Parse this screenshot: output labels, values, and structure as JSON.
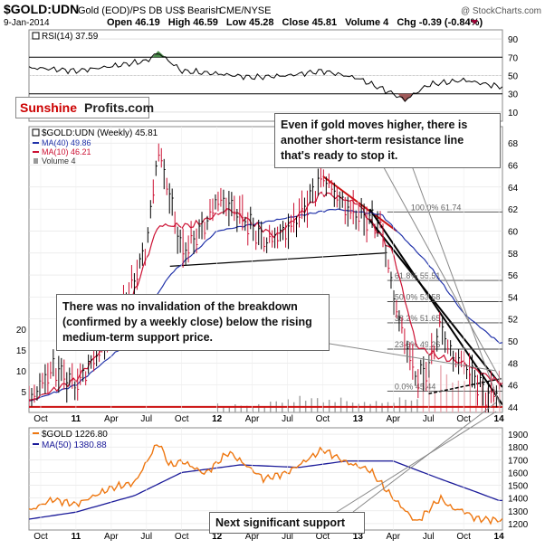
{
  "header": {
    "symbol": "$GOLD:UDN",
    "description": "Gold (EOD)/PS DB US$ Bearish",
    "exchange": "CME/NYSE",
    "watermark": "@ StockCharts.com",
    "date": "9-Jan-2014",
    "open_label": "Open",
    "open": "46.19",
    "high_label": "High",
    "high": "46.59",
    "low_label": "Low",
    "low": "45.28",
    "close_label": "Close",
    "close": "45.81",
    "volume_label": "Volume",
    "volume": "4",
    "chg_label": "Chg",
    "chg": "-0.39 (-0.84%)"
  },
  "logo": {
    "part1": "Sunshine",
    "part2": "Profits.com"
  },
  "rsi_panel": {
    "legend": "RSI(14) 37.59",
    "ticks": [
      "90",
      "70",
      "50",
      "30",
      "10"
    ]
  },
  "price_panel": {
    "legend_main": "$GOLD:UDN (Weekly) 45.81",
    "legend_ma40": "MA(40) 49.86",
    "legend_ma10": "MA(10) 46.21",
    "legend_volume": "Volume 4",
    "right_ticks": [
      "68",
      "66",
      "64",
      "62",
      "60",
      "58",
      "56",
      "54",
      "52",
      "50",
      "48",
      "46",
      "44"
    ],
    "volume_ticks": [
      "20",
      "15",
      "10",
      "5"
    ],
    "fib_levels": [
      "100.0% 61.74",
      "61.8% 55.51",
      "50.0% 53.58",
      "38.2% 51.65",
      "23.6% 49.26",
      "0.0% 45.44"
    ]
  },
  "gold_panel": {
    "legend_main": "$GOLD 1226.80",
    "legend_ma50": "MA(50) 1380.88",
    "ticks": [
      "1900",
      "1800",
      "1700",
      "1600",
      "1500",
      "1400",
      "1300",
      "1200"
    ]
  },
  "x_axis_labels": [
    "Oct",
    "11",
    "Apr",
    "Jul",
    "Oct",
    "12",
    "Apr",
    "Jul",
    "Oct",
    "13",
    "Apr",
    "Jul",
    "Oct",
    "14"
  ],
  "annotations": {
    "top_right": "Even if gold moves higher, there is another short-term resistance line that's ready to stop it.",
    "middle_left": "There was no invalidation of the breakdown (confirmed by a weekly close) below the rising medium-term support price.",
    "bottom": "Next significant support"
  },
  "colors": {
    "price_line": "#000000",
    "ma40": "#2233aa",
    "ma10": "#cc1133",
    "volume_up": "#e8a8b0",
    "rsi_line": "#000000",
    "rsi_overbought_fill": "#4a8a4a",
    "rsi_oversold_fill": "#a05a5a",
    "gold_line": "#ee7711",
    "gold_ma50": "#1a1a99",
    "trend_red": "#cc1111",
    "logo_red": "#cc0000"
  },
  "chart_data": [
    {
      "type": "line",
      "title": "RSI(14)",
      "x_range": [
        "2010-09",
        "2014-01"
      ],
      "ylim": [
        0,
        100
      ],
      "guide_levels": [
        70,
        50,
        30
      ],
      "last_value": 37.59,
      "series": [
        {
          "name": "RSI(14)",
          "x": [
            "2010-10",
            "2011-01",
            "2011-04",
            "2011-07",
            "2011-08",
            "2011-10",
            "2012-01",
            "2012-04",
            "2012-07",
            "2012-10",
            "2013-01",
            "2013-04",
            "2013-05",
            "2013-07",
            "2013-10",
            "2014-01"
          ],
          "values": [
            58,
            55,
            60,
            66,
            75,
            55,
            52,
            48,
            50,
            55,
            47,
            30,
            23,
            40,
            45,
            38
          ]
        }
      ]
    },
    {
      "type": "line",
      "title": "$GOLD:UDN (Weekly)",
      "x_range": [
        "2010-09",
        "2014-01"
      ],
      "ylim": [
        43.5,
        69.5
      ],
      "last_value": 45.81,
      "series": [
        {
          "name": "$GOLD:UDN",
          "x": [
            "2010-09",
            "2010-11",
            "2011-01",
            "2011-03",
            "2011-05",
            "2011-07",
            "2011-08",
            "2011-09",
            "2011-10",
            "2011-12",
            "2012-01",
            "2012-03",
            "2012-05",
            "2012-07",
            "2012-09",
            "2012-10",
            "2012-12",
            "2013-02",
            "2013-03",
            "2013-04",
            "2013-05",
            "2013-06",
            "2013-07",
            "2013-08",
            "2013-09",
            "2013-10",
            "2013-11",
            "2013-12",
            "2014-01"
          ],
          "values": [
            44.5,
            47.5,
            46.0,
            49.0,
            53.0,
            58.5,
            67.5,
            63.0,
            58.0,
            60.5,
            63.0,
            61.5,
            59.0,
            60.0,
            63.0,
            65.0,
            62.0,
            61.0,
            60.5,
            54.0,
            50.0,
            46.5,
            47.5,
            51.5,
            48.5,
            48.0,
            46.5,
            44.8,
            45.81
          ]
        },
        {
          "name": "MA(40)",
          "x": [
            "2010-09",
            "2011-01",
            "2011-05",
            "2011-09",
            "2012-01",
            "2012-06",
            "2012-11",
            "2013-03",
            "2013-07",
            "2013-10",
            "2014-01"
          ],
          "values": [
            44.5,
            46.0,
            49.5,
            56.0,
            60.0,
            61.0,
            62.0,
            61.5,
            57.0,
            52.5,
            49.86
          ]
        },
        {
          "name": "MA(10)",
          "x": [
            "2010-09",
            "2011-01",
            "2011-05",
            "2011-08",
            "2011-11",
            "2012-02",
            "2012-06",
            "2012-10",
            "2013-01",
            "2013-04",
            "2013-06",
            "2013-08",
            "2013-10",
            "2014-01"
          ],
          "values": [
            44.5,
            46.5,
            51.5,
            60.5,
            60.5,
            62.0,
            59.5,
            63.5,
            62.5,
            58.0,
            49.5,
            48.5,
            48.0,
            46.21
          ]
        }
      ],
      "volume_ylim": [
        0,
        25
      ],
      "volume_last": 4,
      "fibonacci": [
        {
          "label": "100.0%",
          "value": 61.74
        },
        {
          "label": "61.8%",
          "value": 55.51
        },
        {
          "label": "50.0%",
          "value": 53.58
        },
        {
          "label": "38.2%",
          "value": 51.65
        },
        {
          "label": "23.6%",
          "value": 49.26
        },
        {
          "label": "0.0%",
          "value": 45.44
        }
      ],
      "trendlines": [
        {
          "name": "support-line",
          "from": [
            "2011-09",
            56.8
          ],
          "to": [
            "2013-03",
            58.0
          ]
        },
        {
          "name": "red-resistance",
          "from": [
            "2012-10",
            65.0
          ],
          "to": [
            "2013-04",
            60.0
          ]
        },
        {
          "name": "steep-resistance-1",
          "from": [
            "2013-02",
            62.0
          ],
          "to": [
            "2014-01",
            44.2
          ]
        },
        {
          "name": "steep-resistance-2",
          "from": [
            "2013-02",
            61.0
          ],
          "to": [
            "2014-01",
            45.8
          ]
        },
        {
          "name": "rising-support",
          "from": [
            "2013-07",
            45.2
          ],
          "to": [
            "2014-01",
            46.6
          ]
        },
        {
          "name": "floor",
          "from": [
            "2010-09",
            44.0
          ],
          "to": [
            "2014-01",
            44.0
          ]
        }
      ]
    },
    {
      "type": "line",
      "title": "$GOLD",
      "x_range": [
        "2010-09",
        "2014-01"
      ],
      "ylim": [
        1150,
        1950
      ],
      "last_value": 1226.8,
      "series": [
        {
          "name": "$GOLD",
          "x": [
            "2010-09",
            "2010-11",
            "2011-01",
            "2011-04",
            "2011-06",
            "2011-08",
            "2011-09",
            "2011-10",
            "2011-12",
            "2012-02",
            "2012-05",
            "2012-07",
            "2012-10",
            "2012-12",
            "2013-02",
            "2013-04",
            "2013-06",
            "2013-08",
            "2013-09",
            "2013-10",
            "2013-11",
            "2014-01"
          ],
          "values": [
            1300,
            1390,
            1350,
            1480,
            1520,
            1840,
            1650,
            1690,
            1590,
            1760,
            1550,
            1600,
            1780,
            1680,
            1620,
            1400,
            1210,
            1400,
            1320,
            1300,
            1240,
            1226.8
          ]
        },
        {
          "name": "MA(50)",
          "x": [
            "2010-09",
            "2011-01",
            "2011-06",
            "2011-10",
            "2012-03",
            "2012-08",
            "2012-12",
            "2013-04",
            "2013-08",
            "2013-11",
            "2014-01"
          ],
          "values": [
            1235,
            1290,
            1420,
            1600,
            1660,
            1640,
            1690,
            1690,
            1550,
            1450,
            1380.88
          ]
        }
      ]
    }
  ]
}
